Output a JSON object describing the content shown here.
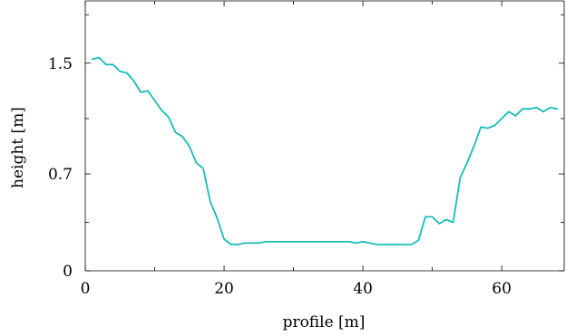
{
  "chart_data": {
    "type": "line",
    "xlabel": "profile [m]",
    "ylabel": "height [m]",
    "xlim": [
      0,
      69
    ],
    "ylim": [
      0,
      1.95
    ],
    "x_ticks": [
      0,
      20,
      40,
      60
    ],
    "x_tick_labels": [
      "0",
      "20",
      "40",
      "60"
    ],
    "y_ticks": [
      0,
      0.7,
      1.5
    ],
    "y_tick_labels": [
      "0",
      "0.7",
      "1.5"
    ],
    "grid": false,
    "series": [
      {
        "color": "#17bdb8",
        "x": [
          1,
          2,
          3,
          4,
          5,
          6,
          7,
          8,
          9,
          10,
          11,
          12,
          13,
          14,
          15,
          16,
          17,
          18,
          19,
          20,
          21,
          22,
          23,
          24,
          25,
          26,
          27,
          28,
          29,
          30,
          31,
          32,
          33,
          34,
          35,
          36,
          37,
          38,
          39,
          40,
          41,
          42,
          43,
          44,
          45,
          46,
          47,
          48,
          49,
          50,
          51,
          52,
          53,
          54,
          55,
          56,
          57,
          58,
          59,
          60,
          61,
          62,
          63,
          64,
          65,
          66,
          67,
          68
        ],
        "values": [
          1.53,
          1.54,
          1.49,
          1.49,
          1.44,
          1.43,
          1.37,
          1.29,
          1.3,
          1.23,
          1.16,
          1.11,
          1.0,
          0.97,
          0.9,
          0.78,
          0.74,
          0.5,
          0.38,
          0.23,
          0.19,
          0.19,
          0.2,
          0.2,
          0.2,
          0.21,
          0.21,
          0.21,
          0.21,
          0.21,
          0.21,
          0.21,
          0.21,
          0.21,
          0.21,
          0.21,
          0.21,
          0.21,
          0.2,
          0.21,
          0.2,
          0.19,
          0.19,
          0.19,
          0.19,
          0.19,
          0.19,
          0.22,
          0.39,
          0.39,
          0.34,
          0.37,
          0.35,
          0.67,
          0.78,
          0.9,
          1.04,
          1.03,
          1.05,
          1.1,
          1.15,
          1.12,
          1.17,
          1.17,
          1.18,
          1.15,
          1.18,
          1.17
        ]
      }
    ]
  }
}
